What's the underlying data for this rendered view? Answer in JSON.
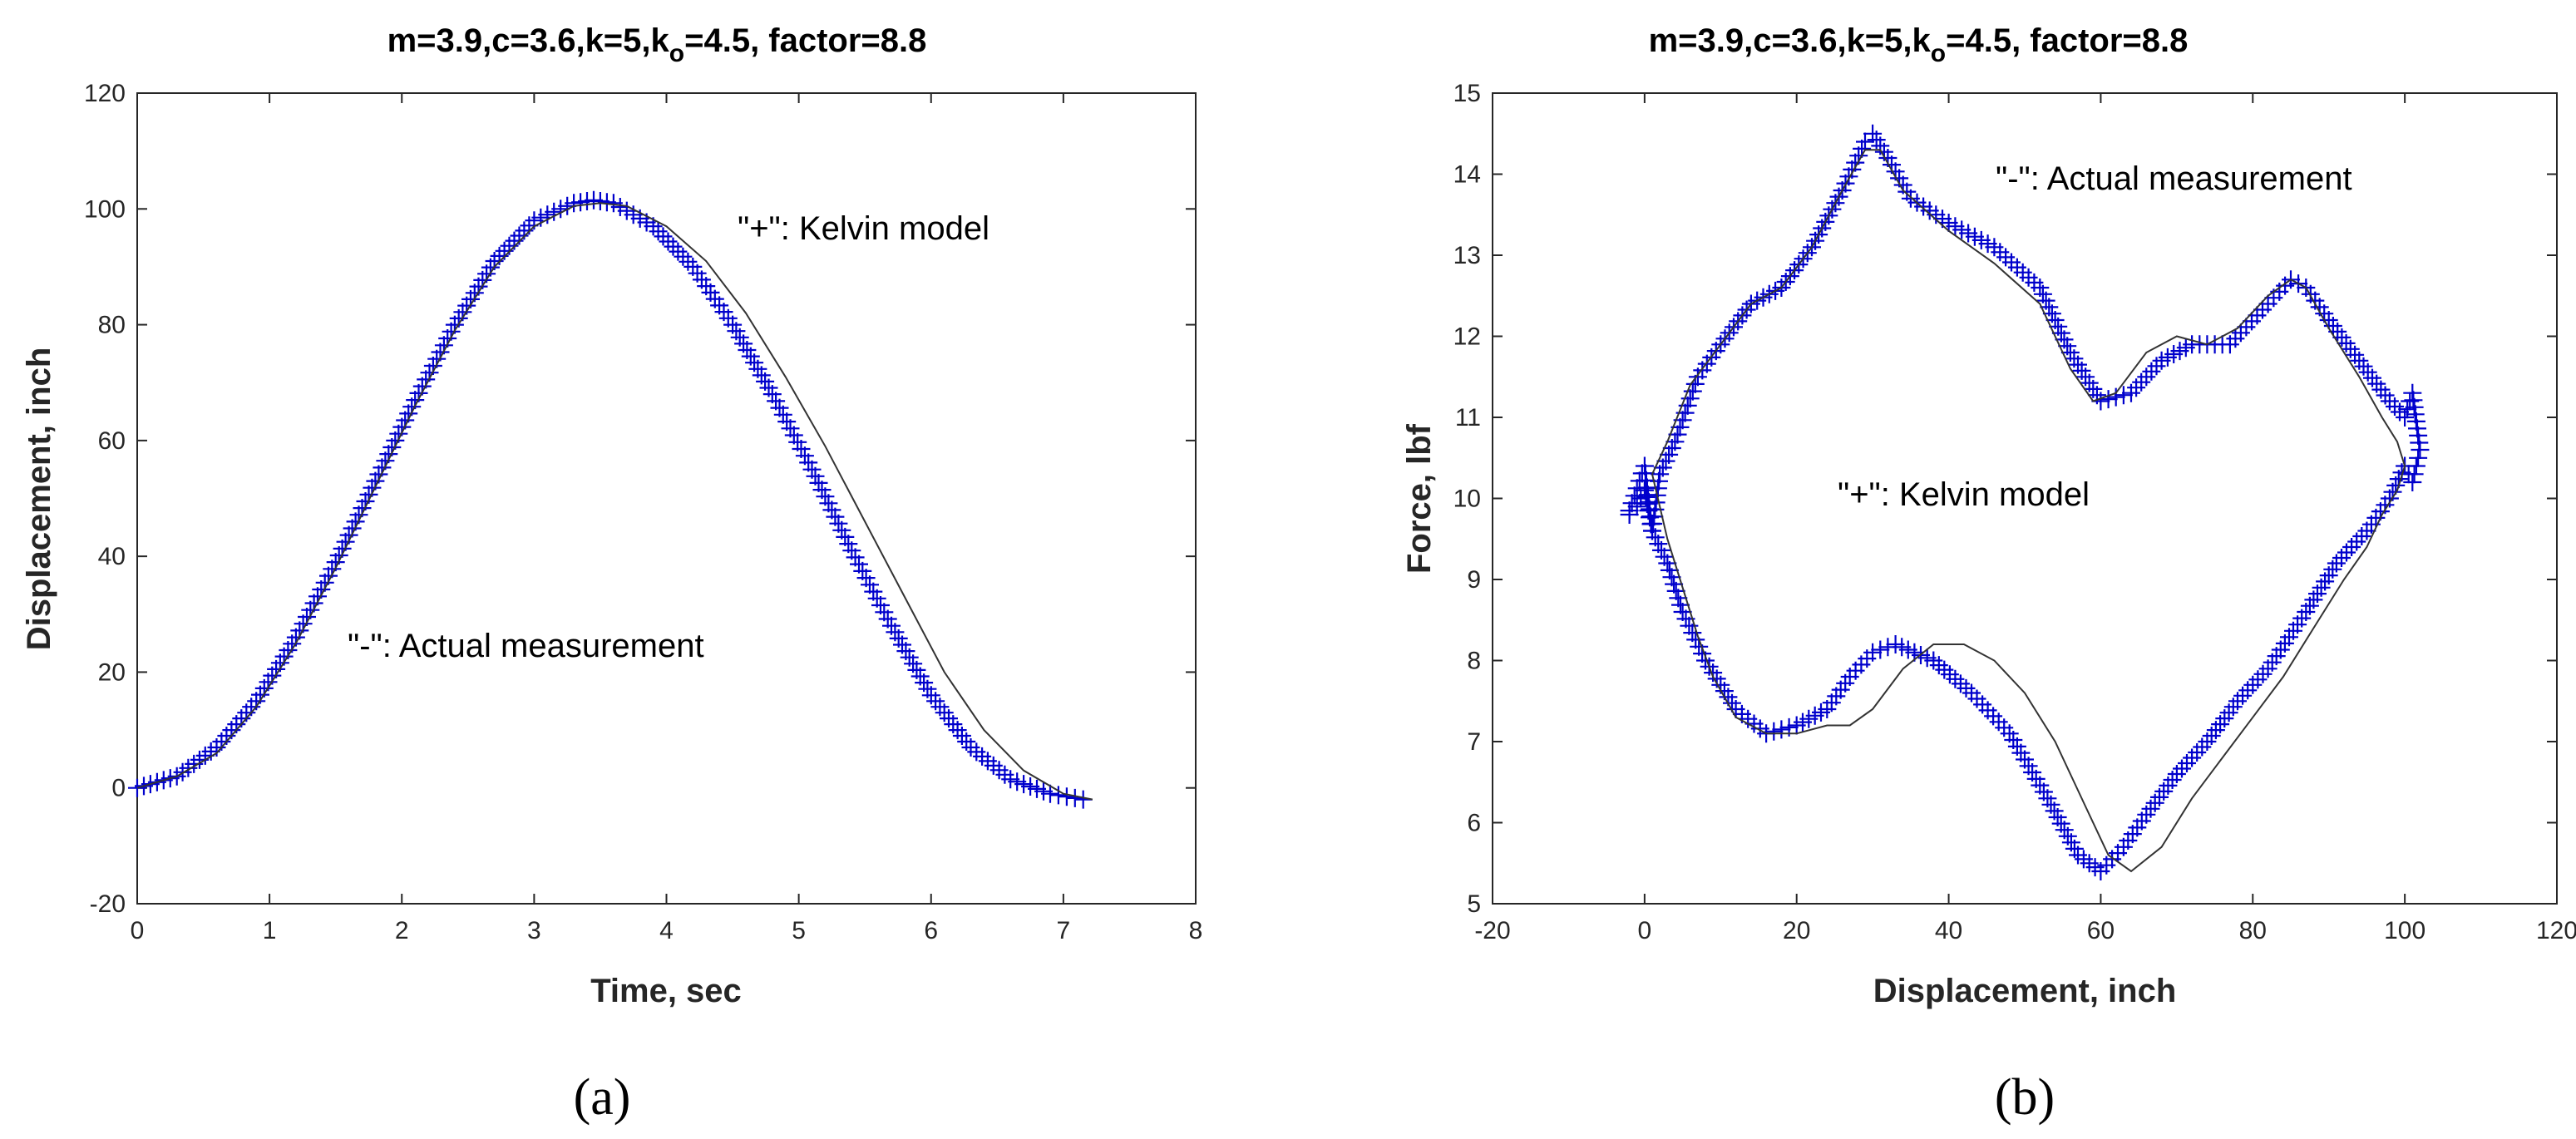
{
  "chart_data": [
    {
      "type": "line",
      "title": "m=3.9,c=3.6,k=5,k",
      "title_sub": "o",
      "title_rest": "=4.5, factor=8.8",
      "xlabel": "Time, sec",
      "ylabel": "Displacement, inch",
      "xlim": [
        0,
        8
      ],
      "ylim": [
        -20,
        120
      ],
      "xticks": [
        "0",
        "1",
        "2",
        "3",
        "4",
        "5",
        "6",
        "7",
        "8"
      ],
      "yticks": [
        "-20",
        "0",
        "20",
        "40",
        "60",
        "80",
        "100",
        "120"
      ],
      "annotations": [
        "\"+\": Kelvin model",
        "\"-\": Actual measurement"
      ],
      "panel_label": "(a)",
      "series": [
        {
          "name": "Kelvin model",
          "marker": "+",
          "color": "#0000cc",
          "x": [
            0,
            0.3,
            0.6,
            0.9,
            1.2,
            1.5,
            1.8,
            2.1,
            2.4,
            2.7,
            3.0,
            3.3,
            3.45,
            3.6,
            3.9,
            4.2,
            4.5,
            4.8,
            5.1,
            5.4,
            5.7,
            6.0,
            6.3,
            6.6,
            6.9,
            7.15
          ],
          "y": [
            0,
            2,
            7,
            15,
            26,
            39,
            53,
            67,
            80,
            91,
            98,
            101,
            101.5,
            101,
            97,
            90,
            80,
            68,
            55,
            41,
            28,
            16,
            7,
            1.5,
            -1,
            -2
          ]
        },
        {
          "name": "Actual measurement",
          "marker": "-",
          "color": "#333333",
          "x": [
            0,
            0.3,
            0.6,
            0.9,
            1.2,
            1.5,
            1.8,
            2.1,
            2.4,
            2.7,
            3.0,
            3.3,
            3.5,
            3.7,
            4.0,
            4.3,
            4.6,
            4.9,
            5.2,
            5.5,
            5.8,
            6.1,
            6.4,
            6.7,
            7.0,
            7.22
          ],
          "y": [
            0,
            2,
            6,
            14,
            25,
            38,
            52,
            66,
            79,
            90,
            97,
            100.5,
            101,
            100.5,
            97,
            91,
            82,
            71,
            59,
            46,
            33,
            20,
            10,
            3,
            -1,
            -2
          ]
        }
      ]
    },
    {
      "type": "line",
      "title": "m=3.9,c=3.6,k=5,k",
      "title_sub": "o",
      "title_rest": "=4.5, factor=8.8",
      "xlabel": "Displacement, inch",
      "ylabel": "Force, lbf",
      "xlim": [
        -20,
        120
      ],
      "ylim": [
        5,
        15
      ],
      "xticks": [
        "-20",
        "0",
        "20",
        "40",
        "60",
        "80",
        "100",
        "120"
      ],
      "yticks": [
        "5",
        "6",
        "7",
        "8",
        "9",
        "10",
        "11",
        "12",
        "13",
        "14",
        "15"
      ],
      "annotations": [
        "\"-\": Actual measurement",
        "\"+\": Kelvin model"
      ],
      "panel_label": "(b)",
      "series": [
        {
          "name": "Kelvin model",
          "marker": "+",
          "color": "#0000cc",
          "x": [
            -2,
            0,
            1,
            2,
            4,
            7,
            10,
            14,
            18,
            22,
            26,
            29,
            30,
            32,
            35,
            40,
            46,
            52,
            56,
            60,
            64,
            68,
            72,
            77,
            82,
            85,
            87,
            90,
            94,
            98,
            100,
            101,
            102,
            101,
            100,
            98,
            95,
            91,
            87,
            82,
            78,
            74,
            70,
            66,
            63,
            60,
            57,
            53,
            48,
            43,
            38,
            33,
            30,
            27,
            24,
            20,
            16,
            12,
            8,
            5,
            3,
            1,
            0,
            -1,
            -2
          ],
          "y": [
            9.85,
            10.4,
            9.6,
            10.3,
            10.7,
            11.5,
            11.9,
            12.4,
            12.6,
            13.1,
            13.8,
            14.4,
            14.5,
            14.2,
            13.7,
            13.4,
            13.1,
            12.6,
            11.8,
            11.2,
            11.3,
            11.7,
            11.9,
            11.9,
            12.4,
            12.7,
            12.6,
            12.2,
            11.7,
            11.2,
            11.0,
            11.3,
            10.6,
            10.2,
            10.4,
            10.0,
            9.6,
            9.2,
            8.6,
            7.9,
            7.5,
            7.0,
            6.6,
            6.1,
            5.7,
            5.4,
            5.6,
            6.3,
            7.1,
            7.6,
            8.0,
            8.2,
            8.1,
            7.8,
            7.4,
            7.2,
            7.1,
            7.4,
            8.0,
            8.6,
            9.2,
            9.6,
            10.1,
            9.9,
            9.8
          ]
        },
        {
          "name": "Actual measurement",
          "marker": "-",
          "color": "#333333",
          "x": [
            1,
            3,
            6,
            10,
            14,
            18,
            22,
            26,
            29,
            31,
            34,
            40,
            46,
            52,
            56,
            59,
            62,
            66,
            70,
            74,
            78,
            82,
            85,
            87,
            90,
            94,
            97,
            99,
            100,
            99,
            97,
            95,
            92,
            88,
            84,
            80,
            76,
            72,
            68,
            64,
            61,
            58,
            54,
            50,
            46,
            42,
            38,
            34,
            30,
            27,
            24,
            20,
            16,
            12,
            9,
            7,
            5,
            3,
            1
          ],
          "y": [
            10.3,
            10.7,
            11.4,
            11.9,
            12.4,
            12.6,
            13.1,
            13.8,
            14.3,
            14.3,
            13.8,
            13.3,
            12.9,
            12.4,
            11.6,
            11.2,
            11.3,
            11.8,
            12.0,
            11.9,
            12.1,
            12.5,
            12.7,
            12.6,
            12.1,
            11.5,
            11.0,
            10.7,
            10.4,
            10.1,
            9.8,
            9.4,
            9.0,
            8.4,
            7.8,
            7.3,
            6.8,
            6.3,
            5.7,
            5.4,
            5.6,
            6.2,
            7.0,
            7.6,
            8.0,
            8.2,
            8.2,
            7.9,
            7.4,
            7.2,
            7.2,
            7.1,
            7.1,
            7.3,
            7.8,
            8.3,
            8.9,
            9.5,
            10.3
          ]
        }
      ]
    }
  ]
}
